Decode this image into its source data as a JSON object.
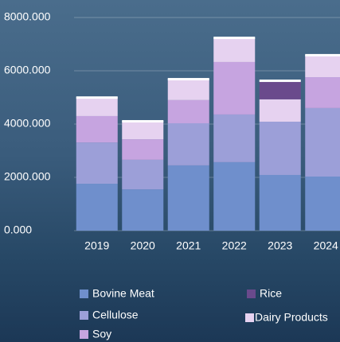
{
  "chart_data": {
    "type": "bar",
    "stacked": true,
    "categories": [
      "2019",
      "2020",
      "2021",
      "2022",
      "2023",
      "2024"
    ],
    "series": [
      {
        "name": "Bovine Meat",
        "color": "#6f8fcc",
        "values": [
          1760,
          1550,
          2450,
          2570,
          2090,
          2030
        ]
      },
      {
        "name": "Rice",
        "color": "#6a4a8c",
        "values": [
          0,
          0,
          0,
          0,
          710,
          0
        ]
      },
      {
        "name": "Cellulose",
        "color": "#9c9fd8",
        "values": [
          1550,
          1110,
          1580,
          1790,
          2000,
          2570
        ]
      },
      {
        "name": "Dairy Products",
        "color": "#e6d2f0",
        "values": [
          710,
          690,
          800,
          920,
          840,
          840
        ]
      },
      {
        "name": "Soy",
        "color": "#c6a4e0",
        "values": [
          990,
          770,
          870,
          1970,
          0,
          1160
        ]
      }
    ],
    "ylim": [
      0,
      8000
    ],
    "yticks": [
      {
        "value": 0,
        "label": "0.000"
      },
      {
        "value": 2000,
        "label": "2000.000"
      },
      {
        "value": 4000,
        "label": "4000.000"
      },
      {
        "value": 6000,
        "label": "6000.000"
      },
      {
        "value": 8000,
        "label": "8000.000"
      }
    ],
    "grid": true
  }
}
